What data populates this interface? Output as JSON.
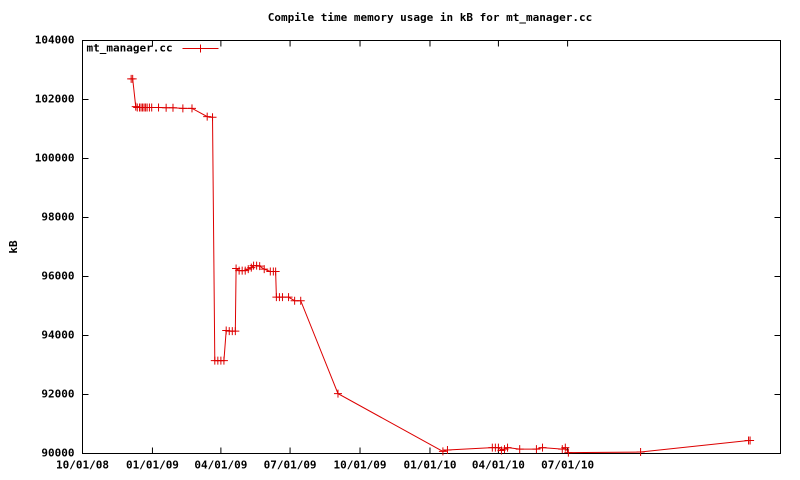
{
  "chart_data": {
    "type": "line",
    "title": "Compile time memory usage in kB for mt_manager.cc",
    "ylabel": "kB",
    "x": [
      "2008-12-04",
      "2008-12-06",
      "2008-12-10",
      "2008-12-12",
      "2008-12-15",
      "2008-12-17",
      "2008-12-19",
      "2008-12-21",
      "2008-12-23",
      "2008-12-25",
      "2008-12-28",
      "2008-12-31",
      "2009-01-09",
      "2009-01-19",
      "2009-01-28",
      "2009-02-10",
      "2009-02-22",
      "2009-03-14",
      "2009-03-21",
      "2009-03-24",
      "2009-03-28",
      "2009-04-01",
      "2009-04-05",
      "2009-04-08",
      "2009-04-12",
      "2009-04-16",
      "2009-04-20",
      "2009-04-21",
      "2009-04-25",
      "2009-04-29",
      "2009-05-03",
      "2009-05-07",
      "2009-05-11",
      "2009-05-14",
      "2009-05-18",
      "2009-05-22",
      "2009-05-28",
      "2009-06-05",
      "2009-06-09",
      "2009-06-12",
      "2009-06-13",
      "2009-06-17",
      "2009-06-21",
      "2009-06-29",
      "2009-07-07",
      "2009-07-15",
      "2009-09-02",
      "2010-01-18",
      "2010-01-24",
      "2010-03-24",
      "2010-03-28",
      "2010-04-01",
      "2010-04-05",
      "2010-04-09",
      "2010-04-13",
      "2010-04-29",
      "2010-05-21",
      "2010-05-29",
      "2010-06-24",
      "2010-06-28",
      "2010-07-02",
      "2010-10-05",
      "2011-02-24",
      "2011-02-26"
    ],
    "series": [
      {
        "name": "mt_manager.cc",
        "color": "#dd0000",
        "values": [
          102700,
          102700,
          101760,
          101730,
          101730,
          101730,
          101730,
          101730,
          101730,
          101730,
          101730,
          101730,
          101730,
          101720,
          101720,
          101700,
          101700,
          101420,
          101400,
          93150,
          93150,
          93150,
          93150,
          94170,
          94150,
          94150,
          94150,
          96270,
          96200,
          96200,
          96200,
          96250,
          96300,
          96370,
          96370,
          96350,
          96250,
          96170,
          96170,
          96170,
          95300,
          95300,
          95300,
          95300,
          95180,
          95180,
          92030,
          90070,
          90120,
          90200,
          90200,
          90200,
          90100,
          90150,
          90200,
          90150,
          90150,
          90200,
          90150,
          90200,
          90030,
          90050,
          90440,
          90440
        ]
      }
    ],
    "xlim": [
      "2008-10-01",
      "2011-04-07"
    ],
    "xticks": [
      {
        "value": "2008-10-01",
        "label": "10/01/08"
      },
      {
        "value": "2009-01-01",
        "label": "01/01/09"
      },
      {
        "value": "2009-04-01",
        "label": "04/01/09"
      },
      {
        "value": "2009-07-01",
        "label": "07/01/09"
      },
      {
        "value": "2009-10-01",
        "label": "10/01/09"
      },
      {
        "value": "2010-01-01",
        "label": "01/01/10"
      },
      {
        "value": "2010-04-01",
        "label": "04/01/10"
      },
      {
        "value": "2010-07-01",
        "label": "07/01/10"
      }
    ],
    "ylim": [
      90000,
      104000
    ],
    "yticks": [
      90000,
      92000,
      94000,
      96000,
      98000,
      100000,
      102000,
      104000
    ],
    "legend": "top-left"
  }
}
